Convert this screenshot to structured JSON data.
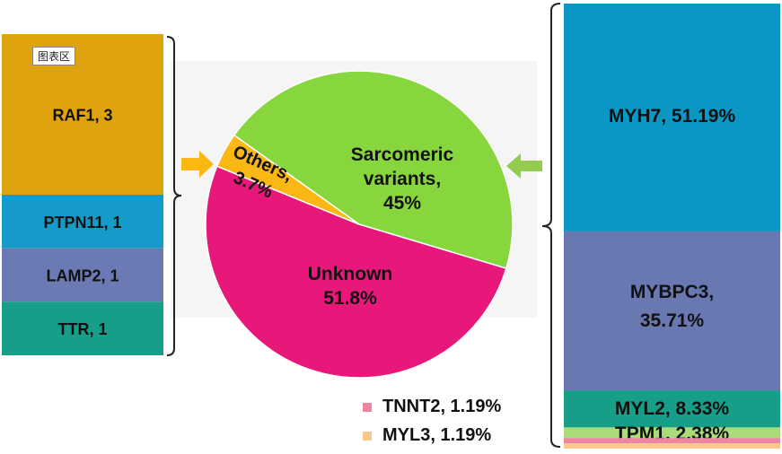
{
  "chart_tag": "图表区",
  "colors": {
    "sarcomeric": "#87d63e",
    "unknown": "#e8177a",
    "others": "#fbb714",
    "arrow_left": "#fbb714",
    "arrow_right": "#92cd50",
    "raf1": "#e0a310",
    "ptpn11": "#159bc9",
    "lamp2": "#6c7ab3",
    "ttr": "#179e89",
    "myh7": "#0a97c4",
    "mybpc3": "#6a78b2",
    "myl2": "#179e89",
    "tpm1": "#a8dd7a",
    "tnnt2": "#ee86a0",
    "myl3": "#fac98a"
  },
  "legend": [
    {
      "label": "TNNT2, 1.19%",
      "color": "#ee86a0"
    },
    {
      "label": "MYL3, 1.19%",
      "color": "#fac98a"
    }
  ],
  "chart_data": [
    {
      "type": "pie",
      "slices": [
        {
          "label_lines": [
            "Sarcomeric",
            "variants,",
            "45%"
          ],
          "value": 45,
          "color": "#87d63e"
        },
        {
          "label_lines": [
            "Unknown",
            "51.8%"
          ],
          "value": 51.8,
          "color": "#e8177a"
        },
        {
          "label_lines": [
            "Others,",
            "3.7%"
          ],
          "value": 3.7,
          "color": "#fbb714"
        }
      ]
    },
    {
      "type": "bar",
      "stacked": true,
      "series": [
        {
          "name": "RAF1",
          "label": "RAF1, 3",
          "value": 3,
          "color": "#e0a310"
        },
        {
          "name": "PTPN11",
          "label": "PTPN11, 1",
          "value": 1,
          "color": "#159bc9"
        },
        {
          "name": "LAMP2",
          "label": "LAMP2, 1",
          "value": 1,
          "color": "#6c7ab3"
        },
        {
          "name": "TTR",
          "label": "TTR, 1",
          "value": 1,
          "color": "#179e89"
        }
      ]
    },
    {
      "type": "bar",
      "stacked": true,
      "series": [
        {
          "name": "MYH7",
          "label_lines": [
            "MYH7, 51.19%"
          ],
          "value": 51.19,
          "color": "#0a97c4"
        },
        {
          "name": "MYBPC3",
          "label_lines": [
            "MYBPC3,",
            "35.71%"
          ],
          "value": 35.71,
          "color": "#6a78b2"
        },
        {
          "name": "MYL2",
          "label_lines": [
            "MYL2, 8.33%"
          ],
          "value": 8.33,
          "color": "#179e89"
        },
        {
          "name": "TPM1",
          "label_lines": [
            "TPM1, 2.38%"
          ],
          "value": 2.38,
          "color": "#a8dd7a"
        },
        {
          "name": "TNNT2",
          "label_lines": [],
          "value": 1.19,
          "color": "#ee86a0"
        },
        {
          "name": "MYL3",
          "label_lines": [],
          "value": 1.19,
          "color": "#fac98a"
        }
      ]
    }
  ]
}
